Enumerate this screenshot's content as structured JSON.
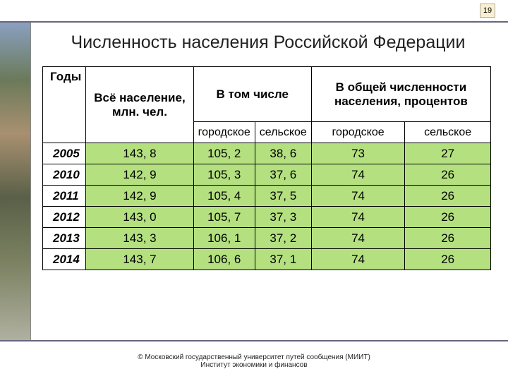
{
  "page_number": "19",
  "title": "Численность населения Российской Федерации",
  "table": {
    "type": "table",
    "background_color": "#ffffff",
    "highlight_color": "#b4e080",
    "border_color": "#000000",
    "header_row1": [
      "Годы",
      "Всё население, млн. чел.",
      "В том числе",
      "В общей численности населения, процентов"
    ],
    "header_row2": [
      "городское",
      "сельское",
      "городское",
      "сельское"
    ],
    "rows": [
      {
        "year": "2005",
        "total": "143, 8",
        "urban_abs": "105, 2",
        "rural_abs": "38, 6",
        "urban_pct": "73",
        "rural_pct": "27"
      },
      {
        "year": "2010",
        "total": "142, 9",
        "urban_abs": "105, 3",
        "rural_abs": "37, 6",
        "urban_pct": "74",
        "rural_pct": "26"
      },
      {
        "year": "2011",
        "total": "142, 9",
        "urban_abs": "105, 4",
        "rural_abs": "37, 5",
        "urban_pct": "74",
        "rural_pct": "26"
      },
      {
        "year": "2012",
        "total": "143, 0",
        "urban_abs": "105, 7",
        "rural_abs": "37, 3",
        "urban_pct": "74",
        "rural_pct": "26"
      },
      {
        "year": "2013",
        "total": "143, 3",
        "urban_abs": "106, 1",
        "rural_abs": "37, 2",
        "urban_pct": "74",
        "rural_pct": "26"
      },
      {
        "year": "2014",
        "total": "143, 7",
        "urban_abs": "106, 6",
        "rural_abs": "37, 1",
        "urban_pct": "74",
        "rural_pct": "26"
      }
    ]
  },
  "footer": {
    "line1": "© Московский государственный университет путей сообщения (МИИТ)",
    "line2": "Институт экономики и финансов"
  }
}
